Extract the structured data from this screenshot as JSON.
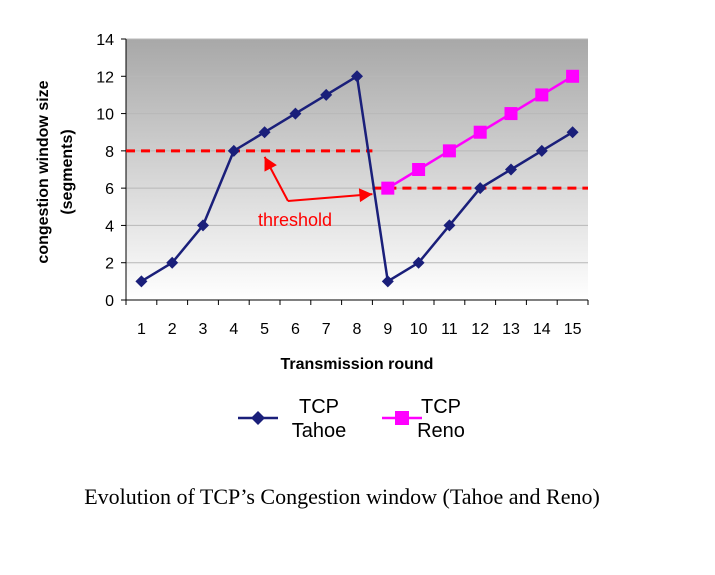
{
  "chart_data": {
    "type": "line",
    "title": "",
    "xlabel": "Transmission round",
    "ylabel": [
      "congestion window size",
      "(segments)"
    ],
    "categories": [
      "1",
      "2",
      "3",
      "4",
      "5",
      "6",
      "7",
      "8",
      "9",
      "10",
      "11",
      "12",
      "13",
      "14",
      "15"
    ],
    "ylim": [
      0,
      14
    ],
    "yticks": [
      0,
      2,
      4,
      6,
      8,
      10,
      12,
      14
    ],
    "grid": true,
    "series": [
      {
        "name": "TCP Tahoe",
        "legend_lines": [
          "TCP",
          "Tahoe"
        ],
        "color": "#1a1f7a",
        "marker": "diamond",
        "x": [
          1,
          2,
          3,
          4,
          5,
          6,
          7,
          8,
          9,
          10,
          11,
          12,
          13,
          14,
          15
        ],
        "values": [
          1,
          2,
          4,
          8,
          9,
          10,
          11,
          12,
          1,
          2,
          4,
          6,
          7,
          8,
          9
        ]
      },
      {
        "name": "TCP Reno",
        "legend_lines": [
          "TCP",
          "Reno"
        ],
        "color": "#ff00ff",
        "marker": "square",
        "x": [
          9,
          10,
          11,
          12,
          13,
          14,
          15
        ],
        "values": [
          6,
          7,
          8,
          9,
          10,
          11,
          12
        ]
      }
    ],
    "thresholds": [
      {
        "from": 0.5,
        "to": 8.5,
        "y": 8
      },
      {
        "from": 8.5,
        "to": 15.5,
        "y": 6
      }
    ],
    "annotation": {
      "text": "threshold",
      "color": "#ff0000",
      "arrow_targets": [
        [
          5,
          8
        ],
        [
          8.5,
          6
        ]
      ]
    },
    "legend_position": "bottom",
    "caption": "Evolution of TCP’s Congestion  window (Tahoe and Reno)"
  }
}
